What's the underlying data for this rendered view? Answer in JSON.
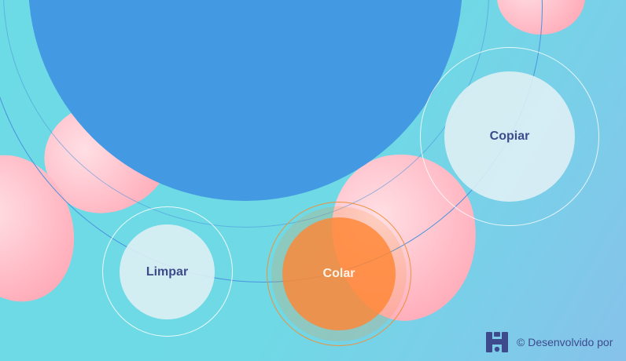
{
  "buttons": {
    "copy_label": "Copiar",
    "clear_label": "Limpar",
    "paste_label": "Colar"
  },
  "footer": {
    "text": "© Desenvolvido por"
  },
  "colors": {
    "background": "#6ddbe6",
    "main_circle": "#4399e2",
    "accent_orange": "#ff8634",
    "text_dark": "#3d4b8c",
    "pink_blob": "#ffb6c1"
  },
  "icons": {
    "footer_logo": "brand-logo-icon"
  }
}
